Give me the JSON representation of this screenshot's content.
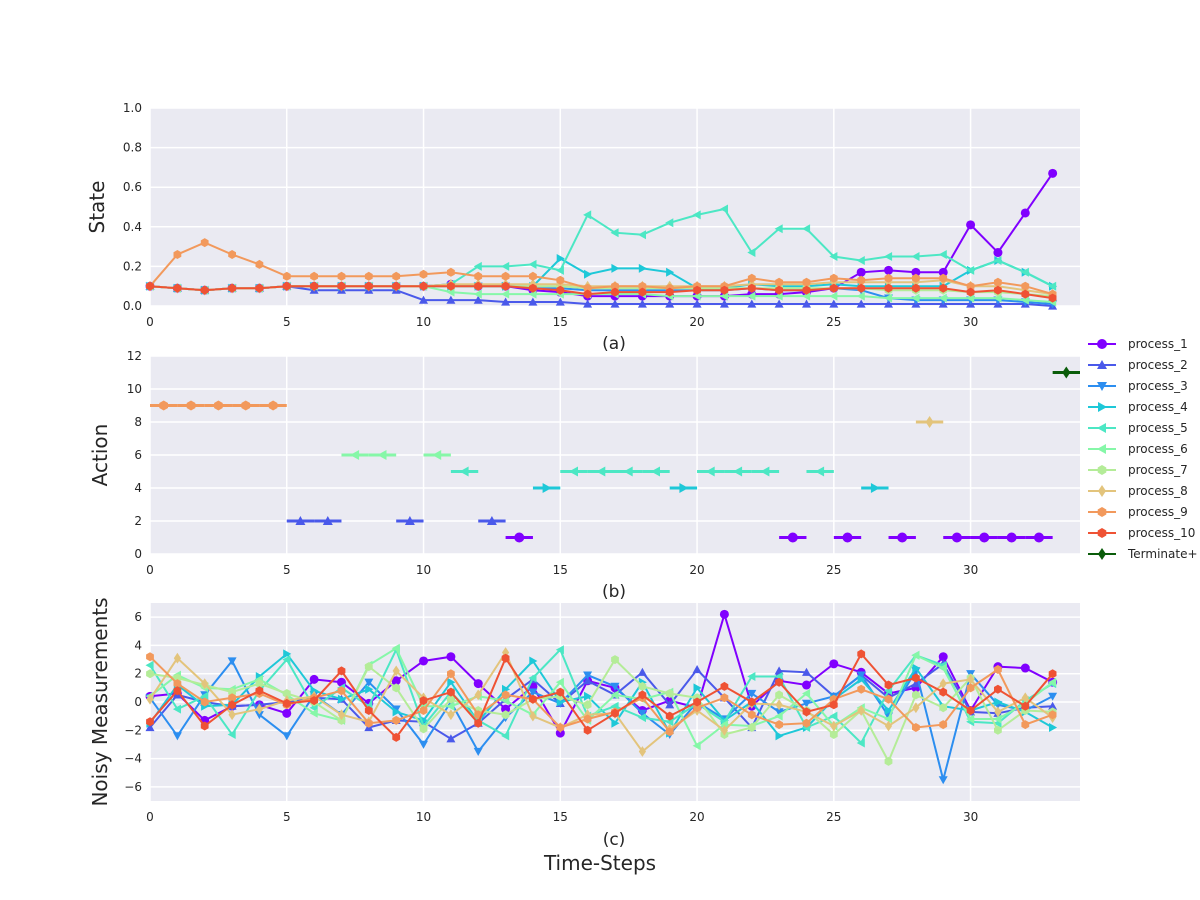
{
  "figure": {
    "xlabel": "Time-Steps"
  },
  "legend": {
    "items": [
      {
        "label": "process_1",
        "color": "#8000ff",
        "marker": "circle"
      },
      {
        "label": "process_2",
        "color": "#4a59ea",
        "marker": "triangle-up"
      },
      {
        "label": "process_3",
        "color": "#2c8ef0",
        "marker": "triangle-down"
      },
      {
        "label": "process_4",
        "color": "#1ec8d8",
        "marker": "triangle-right"
      },
      {
        "label": "process_5",
        "color": "#4ce7c4",
        "marker": "triangle-left"
      },
      {
        "label": "process_6",
        "color": "#86f7a8",
        "marker": "triangle-left"
      },
      {
        "label": "process_7",
        "color": "#b4ec98",
        "marker": "hexagon"
      },
      {
        "label": "process_8",
        "color": "#e3c47c",
        "marker": "diamond"
      },
      {
        "label": "process_9",
        "color": "#f2995c",
        "marker": "hexagon"
      },
      {
        "label": "process_10",
        "color": "#ef5234",
        "marker": "hexagon"
      },
      {
        "label": "Terminate+",
        "color": "#0a5c0a",
        "marker": "diamond"
      }
    ]
  },
  "chart_data": [
    {
      "type": "line",
      "subtitle": "(a)",
      "ylabel": "State",
      "xlim": [
        0,
        34
      ],
      "ylim": [
        0,
        1.0
      ],
      "xticks": [
        0,
        5,
        10,
        15,
        20,
        25,
        30
      ],
      "yticks": [
        "0.0",
        "0.2",
        "0.4",
        "0.6",
        "0.8",
        "1.0"
      ],
      "x": [
        0,
        1,
        2,
        3,
        4,
        5,
        6,
        7,
        8,
        9,
        10,
        11,
        12,
        13,
        14,
        15,
        16,
        17,
        18,
        19,
        20,
        21,
        22,
        23,
        24,
        25,
        26,
        27,
        28,
        29,
        30,
        31,
        32,
        33
      ],
      "series": [
        {
          "name": "process_1",
          "values": [
            0.1,
            0.09,
            0.08,
            0.09,
            0.09,
            0.1,
            0.1,
            0.1,
            0.1,
            0.1,
            0.1,
            0.11,
            0.1,
            0.1,
            0.08,
            0.07,
            0.05,
            0.05,
            0.05,
            0.05,
            0.05,
            0.05,
            0.06,
            0.06,
            0.07,
            0.09,
            0.17,
            0.18,
            0.17,
            0.17,
            0.41,
            0.27,
            0.47,
            0.67
          ]
        },
        {
          "name": "process_2",
          "values": [
            0.1,
            0.09,
            0.08,
            0.09,
            0.09,
            0.1,
            0.08,
            0.08,
            0.08,
            0.08,
            0.03,
            0.03,
            0.03,
            0.02,
            0.02,
            0.02,
            0.01,
            0.01,
            0.01,
            0.01,
            0.01,
            0.01,
            0.01,
            0.01,
            0.01,
            0.01,
            0.01,
            0.01,
            0.01,
            0.01,
            0.01,
            0.01,
            0.01,
            0.0
          ]
        },
        {
          "name": "process_3",
          "values": [
            0.1,
            0.09,
            0.08,
            0.09,
            0.09,
            0.1,
            0.1,
            0.1,
            0.1,
            0.1,
            0.1,
            0.1,
            0.1,
            0.1,
            0.09,
            0.09,
            0.08,
            0.08,
            0.08,
            0.08,
            0.08,
            0.08,
            0.09,
            0.08,
            0.08,
            0.09,
            0.08,
            0.04,
            0.03,
            0.03,
            0.03,
            0.03,
            0.02,
            0.01
          ]
        },
        {
          "name": "process_4",
          "values": [
            0.1,
            0.09,
            0.08,
            0.09,
            0.09,
            0.1,
            0.1,
            0.1,
            0.1,
            0.1,
            0.1,
            0.1,
            0.1,
            0.1,
            0.1,
            0.24,
            0.16,
            0.19,
            0.19,
            0.17,
            0.09,
            0.09,
            0.11,
            0.1,
            0.1,
            0.11,
            0.1,
            0.1,
            0.1,
            0.1,
            0.18,
            0.23,
            0.17,
            0.1
          ]
        },
        {
          "name": "process_5",
          "values": [
            0.1,
            0.09,
            0.08,
            0.09,
            0.09,
            0.1,
            0.1,
            0.1,
            0.1,
            0.1,
            0.1,
            0.11,
            0.2,
            0.2,
            0.21,
            0.18,
            0.46,
            0.37,
            0.36,
            0.42,
            0.46,
            0.49,
            0.27,
            0.39,
            0.39,
            0.25,
            0.23,
            0.25,
            0.25,
            0.26,
            0.18,
            0.23,
            0.17,
            0.1
          ]
        },
        {
          "name": "process_6",
          "values": [
            0.1,
            0.09,
            0.08,
            0.09,
            0.09,
            0.1,
            0.1,
            0.1,
            0.1,
            0.1,
            0.1,
            0.07,
            0.06,
            0.06,
            0.06,
            0.06,
            0.06,
            0.06,
            0.06,
            0.05,
            0.05,
            0.05,
            0.05,
            0.05,
            0.05,
            0.05,
            0.05,
            0.04,
            0.04,
            0.04,
            0.04,
            0.04,
            0.03,
            0.02
          ]
        },
        {
          "name": "process_7",
          "values": [
            0.1,
            0.09,
            0.08,
            0.09,
            0.09,
            0.1,
            0.1,
            0.1,
            0.1,
            0.1,
            0.1,
            0.1,
            0.1,
            0.1,
            0.1,
            0.1,
            0.09,
            0.09,
            0.09,
            0.09,
            0.09,
            0.09,
            0.09,
            0.09,
            0.09,
            0.09,
            0.09,
            0.08,
            0.08,
            0.08,
            0.07,
            0.07,
            0.06,
            0.05
          ]
        },
        {
          "name": "process_8",
          "values": [
            0.1,
            0.09,
            0.08,
            0.09,
            0.09,
            0.1,
            0.1,
            0.1,
            0.1,
            0.1,
            0.1,
            0.11,
            0.11,
            0.11,
            0.11,
            0.11,
            0.1,
            0.1,
            0.1,
            0.1,
            0.1,
            0.1,
            0.11,
            0.11,
            0.11,
            0.12,
            0.12,
            0.12,
            0.12,
            0.13,
            0.1,
            0.1,
            0.08,
            0.06
          ]
        },
        {
          "name": "process_9",
          "values": [
            0.1,
            0.26,
            0.32,
            0.26,
            0.21,
            0.15,
            0.15,
            0.15,
            0.15,
            0.15,
            0.16,
            0.17,
            0.15,
            0.15,
            0.15,
            0.13,
            0.09,
            0.1,
            0.1,
            0.09,
            0.1,
            0.1,
            0.14,
            0.12,
            0.12,
            0.14,
            0.13,
            0.14,
            0.14,
            0.14,
            0.1,
            0.12,
            0.1,
            0.06
          ]
        },
        {
          "name": "process_10",
          "values": [
            0.1,
            0.09,
            0.08,
            0.09,
            0.09,
            0.1,
            0.1,
            0.1,
            0.1,
            0.1,
            0.1,
            0.1,
            0.1,
            0.1,
            0.09,
            0.08,
            0.06,
            0.07,
            0.07,
            0.07,
            0.08,
            0.08,
            0.09,
            0.08,
            0.08,
            0.09,
            0.09,
            0.09,
            0.09,
            0.09,
            0.07,
            0.08,
            0.06,
            0.04
          ]
        }
      ]
    },
    {
      "type": "scatter",
      "subtitle": "(b)",
      "ylabel": "Action",
      "xlim": [
        0,
        34
      ],
      "ylim": [
        0,
        12
      ],
      "xticks": [
        0,
        5,
        10,
        15,
        20,
        25,
        30
      ],
      "yticks": [
        "0",
        "2",
        "4",
        "6",
        "8",
        "10",
        "12"
      ],
      "points": [
        {
          "t": 0,
          "a": 9,
          "s": "process_9"
        },
        {
          "t": 1,
          "a": 9,
          "s": "process_9"
        },
        {
          "t": 2,
          "a": 9,
          "s": "process_9"
        },
        {
          "t": 3,
          "a": 9,
          "s": "process_9"
        },
        {
          "t": 4,
          "a": 9,
          "s": "process_9"
        },
        {
          "t": 5,
          "a": 2,
          "s": "process_2"
        },
        {
          "t": 6,
          "a": 2,
          "s": "process_2"
        },
        {
          "t": 7,
          "a": 6,
          "s": "process_6"
        },
        {
          "t": 8,
          "a": 6,
          "s": "process_6"
        },
        {
          "t": 9,
          "a": 2,
          "s": "process_2"
        },
        {
          "t": 10,
          "a": 6,
          "s": "process_6"
        },
        {
          "t": 11,
          "a": 5,
          "s": "process_5"
        },
        {
          "t": 12,
          "a": 2,
          "s": "process_2"
        },
        {
          "t": 13,
          "a": 1,
          "s": "process_1"
        },
        {
          "t": 14,
          "a": 4,
          "s": "process_4"
        },
        {
          "t": 15,
          "a": 5,
          "s": "process_5"
        },
        {
          "t": 16,
          "a": 5,
          "s": "process_5"
        },
        {
          "t": 17,
          "a": 5,
          "s": "process_5"
        },
        {
          "t": 18,
          "a": 5,
          "s": "process_5"
        },
        {
          "t": 19,
          "a": 4,
          "s": "process_4"
        },
        {
          "t": 20,
          "a": 5,
          "s": "process_5"
        },
        {
          "t": 21,
          "a": 5,
          "s": "process_5"
        },
        {
          "t": 22,
          "a": 5,
          "s": "process_5"
        },
        {
          "t": 23,
          "a": 1,
          "s": "process_1"
        },
        {
          "t": 24,
          "a": 5,
          "s": "process_5"
        },
        {
          "t": 25,
          "a": 1,
          "s": "process_1"
        },
        {
          "t": 26,
          "a": 4,
          "s": "process_4"
        },
        {
          "t": 27,
          "a": 1,
          "s": "process_1"
        },
        {
          "t": 28,
          "a": 8,
          "s": "process_8"
        },
        {
          "t": 29,
          "a": 1,
          "s": "process_1"
        },
        {
          "t": 30,
          "a": 1,
          "s": "process_1"
        },
        {
          "t": 31,
          "a": 1,
          "s": "process_1"
        },
        {
          "t": 32,
          "a": 1,
          "s": "process_1"
        },
        {
          "t": 33,
          "a": 11,
          "s": "Terminate+"
        }
      ]
    },
    {
      "type": "line",
      "subtitle": "(c)",
      "ylabel": "Noisy Measurements",
      "xlim": [
        0,
        34
      ],
      "ylim": [
        -7,
        7
      ],
      "xticks": [
        0,
        5,
        10,
        15,
        20,
        25,
        30
      ],
      "yticks": [
        "−6",
        "−4",
        "−2",
        "0",
        "2",
        "4",
        "6"
      ],
      "x": [
        0,
        1,
        2,
        3,
        4,
        5,
        6,
        7,
        8,
        9,
        10,
        11,
        12,
        13,
        14,
        15,
        16,
        17,
        18,
        19,
        20,
        21,
        22,
        23,
        24,
        25,
        26,
        27,
        28,
        29,
        30,
        31,
        32,
        33
      ],
      "series": [
        {
          "name": "process_1",
          "values": [
            0.4,
            0.6,
            -1.3,
            -0.3,
            -0.2,
            -0.8,
            1.6,
            1.4,
            -0.1,
            1.5,
            2.9,
            3.2,
            1.3,
            -0.5,
            1.1,
            -2.2,
            1.5,
            1.0,
            -0.6,
            0.1,
            -0.4,
            6.2,
            -0.3,
            1.5,
            1.2,
            2.7,
            2.1,
            0.6,
            1.0,
            3.2,
            -0.6,
            2.5,
            2.4,
            1.4
          ]
        },
        {
          "name": "process_2",
          "values": [
            -1.8,
            0.5,
            0.0,
            -0.3,
            -0.2,
            0.0,
            0.3,
            0.2,
            -1.8,
            -1.3,
            -1.4,
            -2.6,
            -1.5,
            0.2,
            1.6,
            -0.1,
            1.5,
            0.5,
            2.1,
            -0.2,
            2.3,
            0.3,
            -1.8,
            2.2,
            2.1,
            0.4,
            1.9,
            0.3,
            1.3,
            2.7,
            -0.7,
            -0.8,
            -0.4,
            -0.3
          ]
        },
        {
          "name": "process_3",
          "values": [
            0.3,
            -2.4,
            0.5,
            2.9,
            -0.9,
            -2.4,
            0.5,
            -0.9,
            1.4,
            -0.5,
            -3.0,
            0.0,
            -3.5,
            -1.1,
            0.7,
            -0.1,
            1.9,
            1.1,
            -0.8,
            -2.3,
            0.0,
            -1.2,
            0.6,
            -0.7,
            -0.1,
            0.4,
            1.9,
            -1.0,
            2.2,
            -5.5,
            2.0,
            -0.2,
            -0.6,
            0.4
          ]
        },
        {
          "name": "process_4",
          "values": [
            -1.5,
            1.2,
            -0.3,
            -0.2,
            1.8,
            3.4,
            0.8,
            0.2,
            0.9,
            -0.7,
            -1.3,
            1.4,
            -1.4,
            0.9,
            2.9,
            0.0,
            0.4,
            -1.5,
            1.4,
            -2.2,
            1.0,
            -1.3,
            0.0,
            -2.4,
            -1.8,
            0.2,
            1.6,
            -0.6,
            2.4,
            -0.3,
            -0.6,
            0.0,
            -0.7,
            -1.8
          ]
        },
        {
          "name": "process_5",
          "values": [
            2.6,
            -0.5,
            0.4,
            -2.3,
            0.8,
            3.0,
            -0.4,
            1.0,
            -0.3,
            3.7,
            -1.7,
            0.7,
            -1.3,
            -2.4,
            1.7,
            3.7,
            -1.0,
            -0.3,
            -1.1,
            -1.4,
            -0.1,
            -1.4,
            1.8,
            1.8,
            -1.8,
            -1.0,
            -2.9,
            0.8,
            3.3,
            2.6,
            -1.4,
            -1.5,
            0.1,
            1.3
          ]
        },
        {
          "name": "process_6",
          "values": [
            0.4,
            1.9,
            1.0,
            0.9,
            1.6,
            0.5,
            -0.8,
            -1.3,
            2.6,
            3.8,
            -0.3,
            -0.3,
            0.4,
            0.1,
            -0.9,
            1.4,
            -1.3,
            0.5,
            0.2,
            0.7,
            -3.1,
            -1.6,
            -1.7,
            -1.0,
            0.6,
            -1.7,
            -0.4,
            -1.2,
            3.3,
            2.4,
            -1.2,
            -1.2,
            -0.1,
            1.4
          ]
        },
        {
          "name": "process_7",
          "values": [
            2.0,
            1.7,
            1.2,
            0.7,
            1.3,
            0.6,
            0.0,
            -1.3,
            2.5,
            1.0,
            -1.9,
            0.2,
            -0.6,
            -0.9,
            0.2,
            0.4,
            -0.2,
            3.0,
            1.1,
            0.6,
            0.3,
            -2.3,
            -1.8,
            0.5,
            -0.6,
            -2.3,
            -0.6,
            -4.2,
            0.5,
            -0.4,
            1.7,
            -2.0,
            -0.6,
            -0.7
          ]
        },
        {
          "name": "process_8",
          "values": [
            0.2,
            3.1,
            1.3,
            -0.9,
            -0.5,
            0.1,
            0.4,
            -0.9,
            -1.4,
            2.2,
            0.3,
            -0.9,
            0.5,
            3.5,
            -1.0,
            -1.8,
            -0.9,
            -0.8,
            -3.5,
            -1.9,
            -0.6,
            -2.0,
            -0.1,
            -0.2,
            -0.7,
            -1.7,
            -0.6,
            -1.7,
            -0.4,
            1.3,
            1.6,
            -0.7,
            0.3,
            -1.1
          ]
        },
        {
          "name": "process_9",
          "values": [
            3.2,
            1.3,
            0.0,
            0.3,
            0.6,
            -0.2,
            0.3,
            0.8,
            -1.5,
            -1.3,
            -0.6,
            2.0,
            -0.9,
            0.5,
            0.2,
            -1.8,
            -1.2,
            -0.7,
            0.3,
            -2.1,
            -0.4,
            0.3,
            -0.9,
            -1.6,
            -1.5,
            0.2,
            0.9,
            0.2,
            -1.8,
            -1.6,
            1.0,
            2.3,
            -1.6,
            -0.9
          ]
        },
        {
          "name": "process_10",
          "values": [
            -1.4,
            0.8,
            -1.7,
            -0.2,
            0.8,
            -0.1,
            0.1,
            2.2,
            -0.6,
            -2.5,
            0.1,
            0.7,
            -1.5,
            3.1,
            0.2,
            0.7,
            -2.0,
            -0.8,
            0.5,
            -1.0,
            0.0,
            1.1,
            0.0,
            1.4,
            -0.7,
            -0.2,
            3.4,
            1.2,
            1.7,
            0.7,
            -0.6,
            0.9,
            -0.3,
            2.0
          ]
        }
      ]
    }
  ]
}
